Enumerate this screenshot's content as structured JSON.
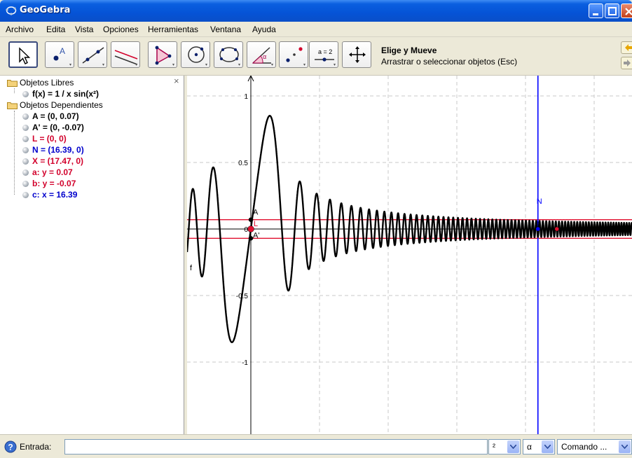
{
  "window": {
    "title": "GeoGebra"
  },
  "menu": [
    "Archivo",
    "Edita",
    "Vista",
    "Opciones",
    "Herramientas",
    "Ventana",
    "Ayuda"
  ],
  "toolbar": {
    "tools": [
      {
        "icon": "move-arrow-icon",
        "selected": true
      },
      {
        "icon": "new-point-icon"
      },
      {
        "icon": "line-through-two-points-icon"
      },
      {
        "icon": "perpendicular-line-icon"
      },
      {
        "icon": "polygon-icon"
      },
      {
        "icon": "circle-center-point-icon"
      },
      {
        "icon": "conic-through-five-points-icon"
      },
      {
        "icon": "angle-icon"
      },
      {
        "icon": "reflect-point-icon"
      },
      {
        "icon": "slider-icon",
        "text": "a = 2"
      },
      {
        "icon": "move-graphics-view-icon"
      }
    ],
    "tip_title": "Elige y Mueve",
    "tip_help": "Arrastrar o seleccionar objetos (Esc)"
  },
  "algebra": {
    "close_symbol": "×",
    "free_header": "Objetos Libres",
    "free_items": [
      {
        "text": "f(x) = 1 / x sin(x²)",
        "color": "black"
      }
    ],
    "dependent_header": "Objetos Dependientes",
    "dependent_items": [
      {
        "text": "A = (0, 0.07)",
        "color": "black"
      },
      {
        "text": "A' = (0, -0.07)",
        "color": "black"
      },
      {
        "text": "L = (0, 0)",
        "color": "red"
      },
      {
        "text": "N = (16.39, 0)",
        "color": "blue"
      },
      {
        "text": "X = (17.47, 0)",
        "color": "red"
      },
      {
        "text": "a: y = 0.07",
        "color": "red"
      },
      {
        "text": "b: y = -0.07",
        "color": "red"
      },
      {
        "text": "c: x = 16.39",
        "color": "blue"
      }
    ]
  },
  "graphics": {
    "y_ticks": [
      "1",
      "0.5",
      "0",
      "-0.5",
      "-1"
    ],
    "function_label": "f",
    "point_labels": {
      "A": "A",
      "A_prime": "A'",
      "L": "L",
      "N": "N"
    },
    "colors": {
      "curve": "#000000",
      "red": "#e0102f",
      "blue": "#0000ff",
      "grid": "#c8c8c8"
    }
  },
  "inputbar": {
    "label": "Entrada:",
    "value": "",
    "combo_power": "²",
    "combo_symbol": "α",
    "combo_command": "Comando ..."
  }
}
